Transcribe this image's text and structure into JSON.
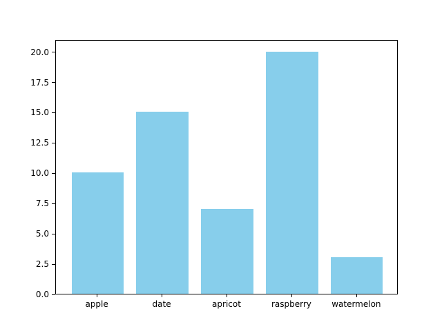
{
  "chart_data": {
    "type": "bar",
    "title": "",
    "xlabel": "",
    "ylabel": "",
    "categories": [
      "apple",
      "date",
      "apricot",
      "raspberry",
      "watermelon"
    ],
    "values": [
      10,
      15,
      7,
      20,
      3
    ],
    "ylim": [
      0,
      21
    ],
    "yticks": [
      "0.0",
      "2.5",
      "5.0",
      "7.5",
      "10.0",
      "12.5",
      "15.0",
      "17.5",
      "20.0"
    ],
    "bar_color": "#87CEEB",
    "background_color": "#FFFFFF",
    "axis_color": "#000000",
    "grid": false,
    "legend_position": "none"
  }
}
